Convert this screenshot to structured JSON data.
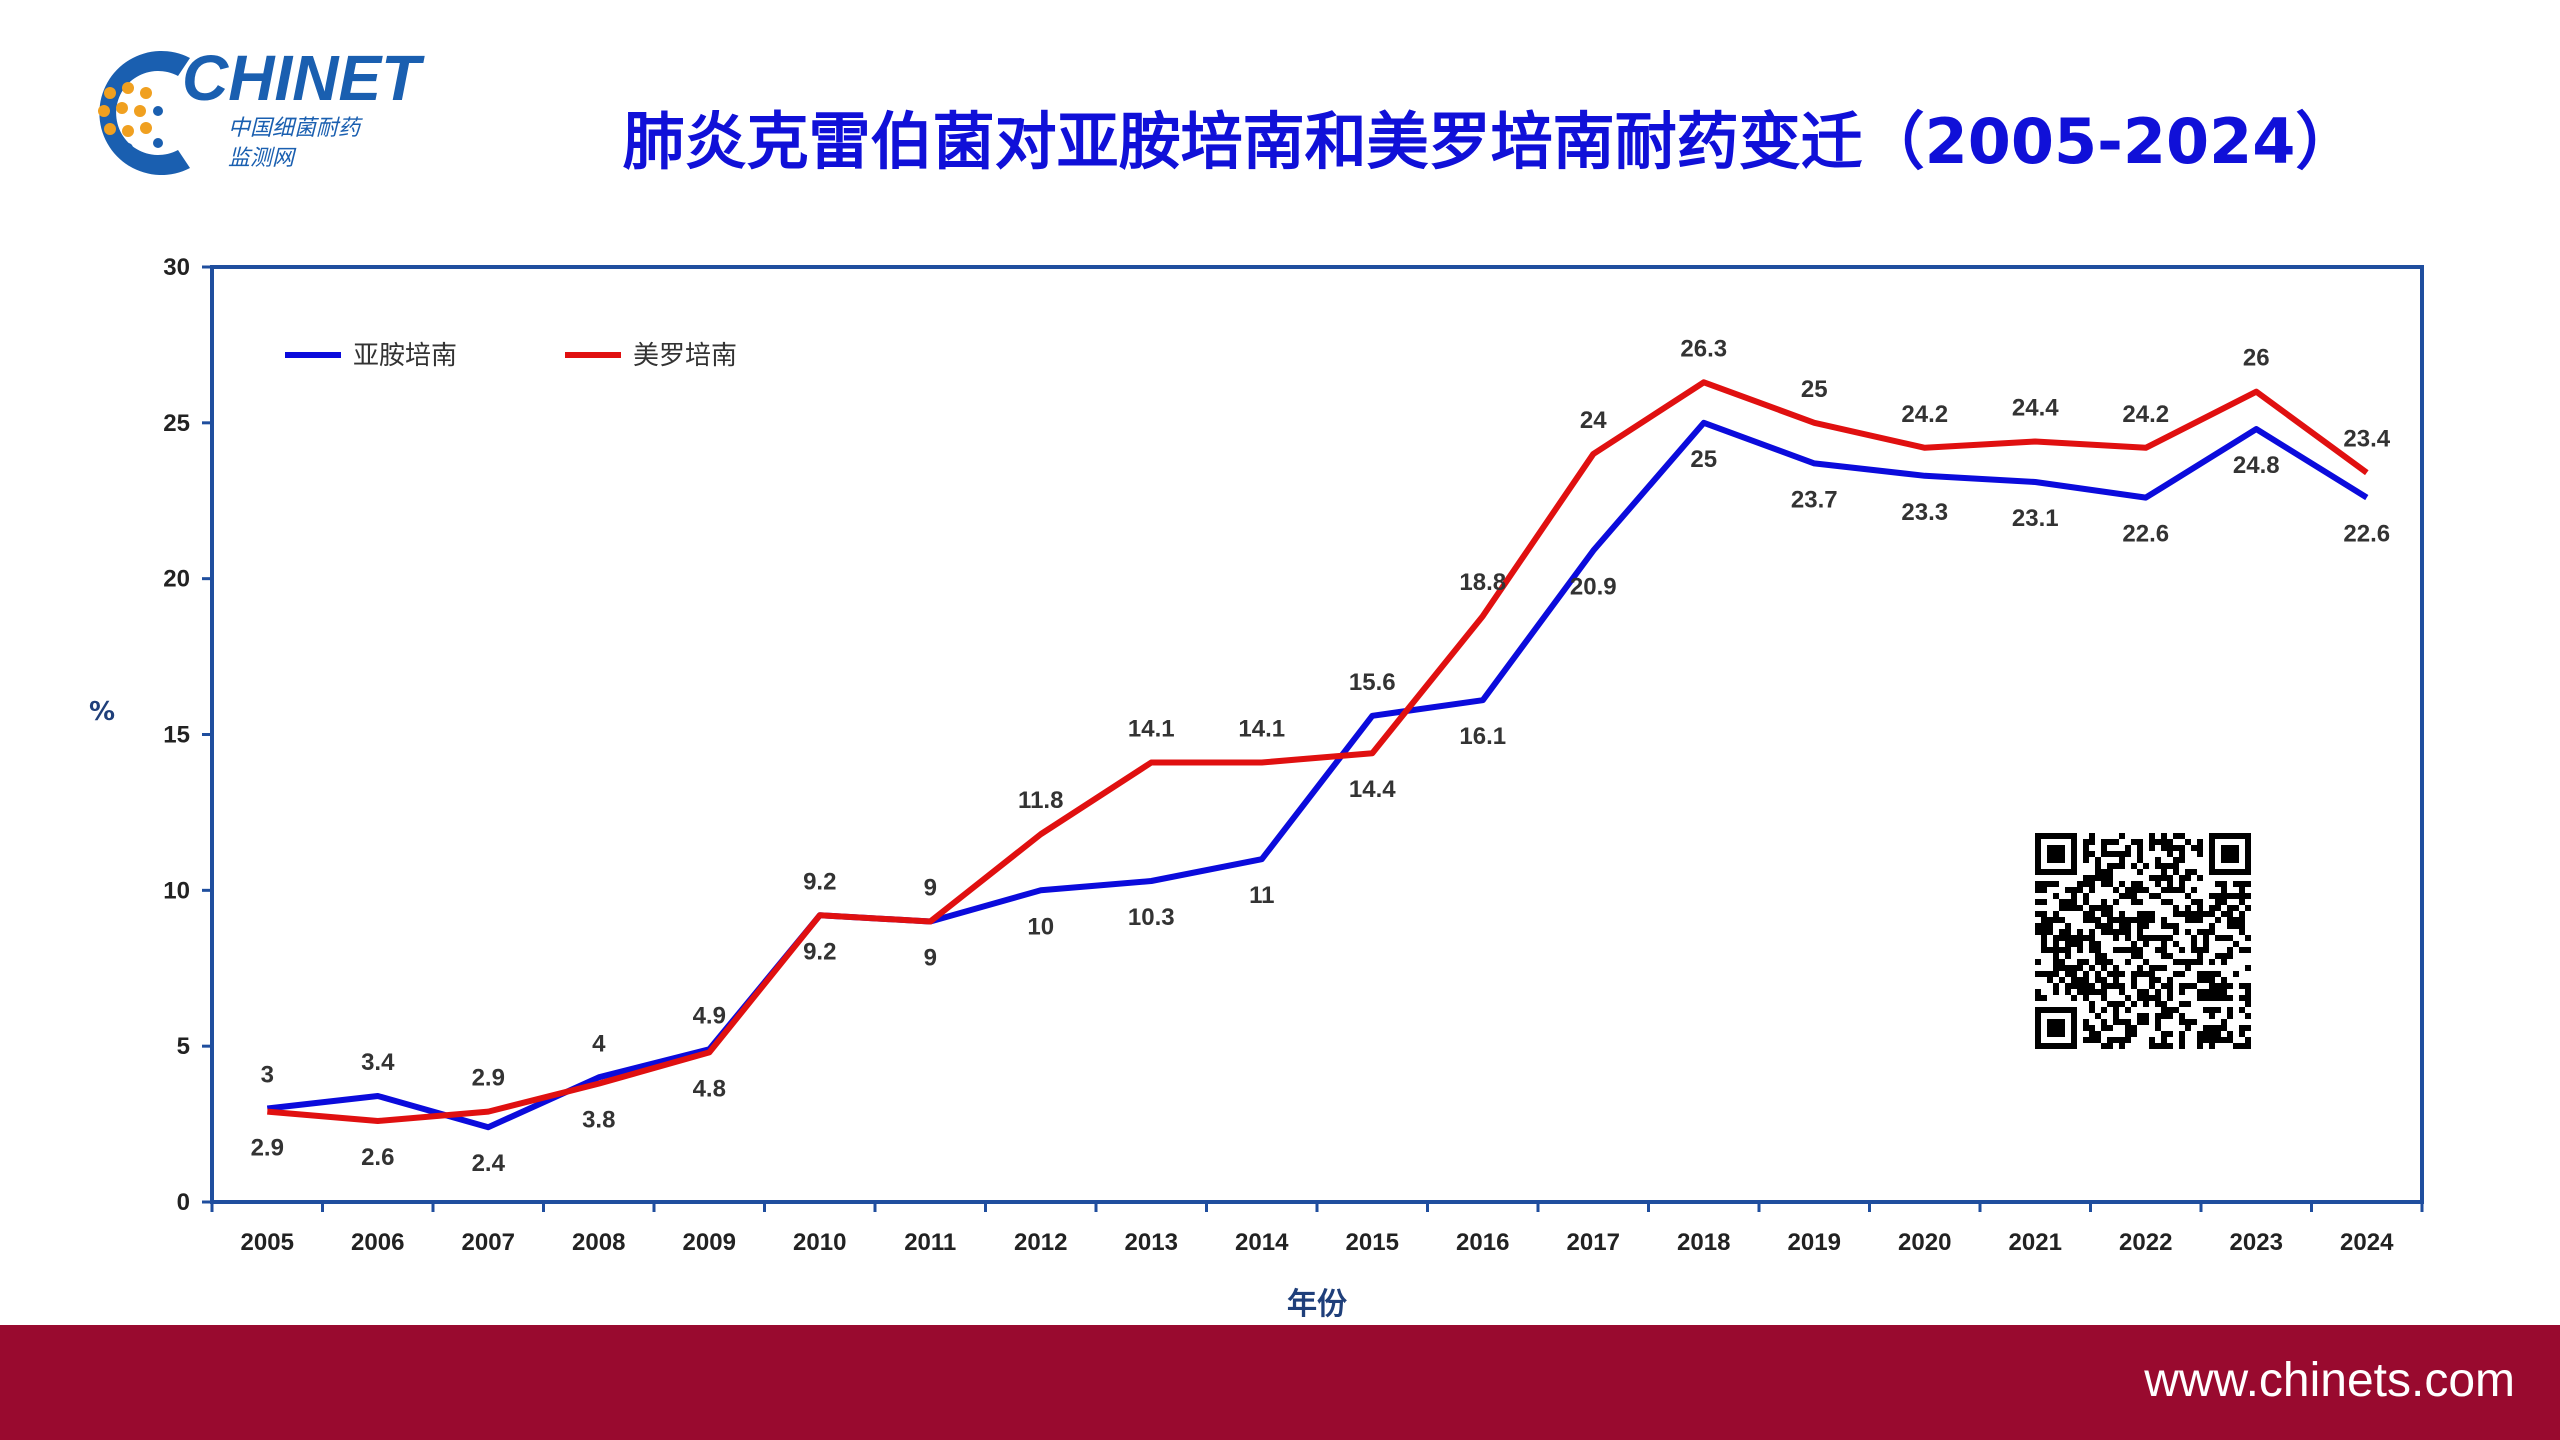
{
  "header": {
    "title": "肺炎克雷伯菌对亚胺培南和美罗培南耐药变迁（2005-2024）",
    "logo": {
      "name": "CHINET",
      "subtitle_cn_line1": "中国细菌耐药",
      "subtitle_cn_line2": "监测网"
    }
  },
  "colors": {
    "title": "#1010d8",
    "axis_frame": "#1f4e9e",
    "axis_label": "#1f3f7a",
    "imipenem": "#0b0bdc",
    "meropenem": "#e01010",
    "footer": "#990a2f"
  },
  "qr_code": {
    "icon": "qr-code-icon"
  },
  "footer": {
    "url": "www.chinets.com"
  },
  "chart_data": {
    "type": "line",
    "title": "",
    "xlabel": "年份",
    "ylabel": "%",
    "x": [
      "2005",
      "2006",
      "2007",
      "2008",
      "2009",
      "2010",
      "2011",
      "2012",
      "2013",
      "2014",
      "2015",
      "2016",
      "2017",
      "2018",
      "2019",
      "2020",
      "2021",
      "2022",
      "2023",
      "2024"
    ],
    "ylim": [
      0,
      30
    ],
    "yticks": [
      0,
      5,
      10,
      15,
      20,
      25,
      30
    ],
    "grid": false,
    "legend": "top-left",
    "series": [
      {
        "name": "亚胺培南",
        "color": "#0b0bdc",
        "values": [
          3,
          3.4,
          2.4,
          4,
          4.9,
          9.2,
          9,
          10,
          10.3,
          11,
          15.6,
          16.1,
          20.9,
          25,
          23.7,
          23.3,
          23.1,
          22.6,
          24.8,
          22.6
        ]
      },
      {
        "name": "美罗培南",
        "color": "#e01010",
        "values": [
          2.9,
          2.6,
          2.9,
          3.8,
          4.8,
          9.2,
          9,
          11.8,
          14.1,
          14.1,
          14.4,
          18.8,
          24,
          26.3,
          25,
          24.2,
          24.4,
          24.2,
          26,
          23.4
        ]
      }
    ]
  }
}
